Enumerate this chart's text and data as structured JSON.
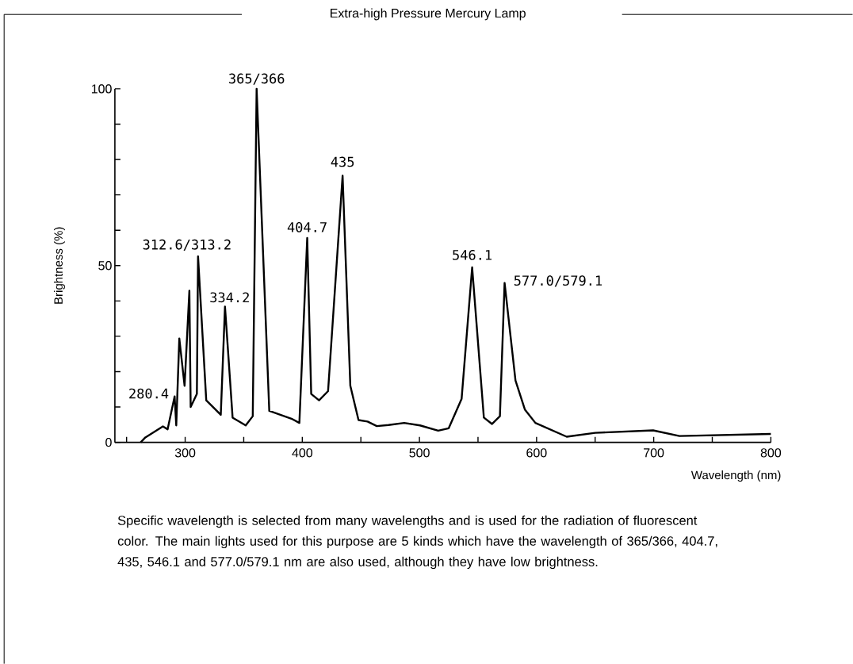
{
  "chart_data": {
    "type": "line",
    "title": "Extra-high Pressure Mercury Lamp",
    "xlabel": "Wavelength (nm)",
    "ylabel": "Brightness (%)",
    "x": [
      262,
      266,
      281,
      285,
      291,
      292.4,
      295,
      299.5,
      303.6,
      304.7,
      310,
      311,
      318,
      330.4,
      334,
      340.5,
      351.7,
      357.7,
      361,
      371.8,
      390.8,
      397.5,
      404.2,
      407.6,
      414.3,
      422,
      434.4,
      441,
      448,
      455.7,
      463.6,
      473.6,
      487,
      500.5,
      516,
      525,
      536,
      545,
      555,
      562,
      568.7,
      572.7,
      582,
      590,
      599,
      625.7,
      650,
      699.5,
      722,
      800
    ],
    "series": [
      {
        "color": "#000000",
        "values": [
          0,
          1.4,
          4.5,
          3.7,
          13,
          4.8,
          29.4,
          16,
          42.9,
          10,
          13.7,
          52.6,
          11.9,
          7.8,
          38.4,
          7,
          4.8,
          7.4,
          100,
          8.9,
          6.7,
          5.5,
          57.8,
          13.7,
          11.9,
          14.5,
          75.4,
          16,
          6.3,
          5.9,
          4.6,
          4.9,
          5.5,
          4.8,
          3.3,
          4,
          12.3,
          49.5,
          7,
          5.2,
          7.4,
          45.1,
          17.5,
          9.3,
          5.5,
          1.6,
          2.7,
          3.4,
          1.8,
          2.4
        ]
      }
    ],
    "grid": false,
    "xlim": [
      240,
      800
    ],
    "ylim": [
      0,
      100
    ],
    "xticks": [
      {
        "value": 250,
        "label": null
      },
      300,
      {
        "value": 350,
        "label": null
      },
      400,
      {
        "value": 450,
        "label": null
      },
      500,
      {
        "value": 550,
        "label": null
      },
      600,
      {
        "value": 650,
        "label": null
      },
      700,
      {
        "value": 750,
        "label": null
      },
      800
    ],
    "yticks": [
      0,
      {
        "value": 10,
        "label": null
      },
      {
        "value": 20,
        "label": null
      },
      {
        "value": 30,
        "label": null
      },
      {
        "value": 40,
        "label": null
      },
      50,
      {
        "value": 60,
        "label": null
      },
      {
        "value": 70,
        "label": null
      },
      {
        "value": 80,
        "label": null
      },
      {
        "value": 90,
        "label": null
      },
      100
    ],
    "annotations": [
      {
        "text": "365/366",
        "x": 361,
        "y": 100
      },
      {
        "text": "435",
        "x": 434.4,
        "y": 75.4
      },
      {
        "text": "404.7",
        "x": 404.2,
        "y": 57.8
      },
      {
        "text": "312.6/313.2",
        "x": 311,
        "y": 52.6
      },
      {
        "text": "546.1",
        "x": 545,
        "y": 49.5
      },
      {
        "text": "334.2",
        "x": 334,
        "y": 38.4
      },
      {
        "text": "577.0/579.1",
        "x": 572.7,
        "y": 45.1
      },
      {
        "text": "280.4",
        "x": 291,
        "y": 13
      },
      "Specific wavelength is selected from many wavelengths and is used for the radiation of fluorescent color. The main lights used for this purpose are 5 kinds which have the wavelength of 365/366, 404.7, 435, 546.1 and 577.0/579.1 nm are also used, although they have low brightness."
    ]
  }
}
